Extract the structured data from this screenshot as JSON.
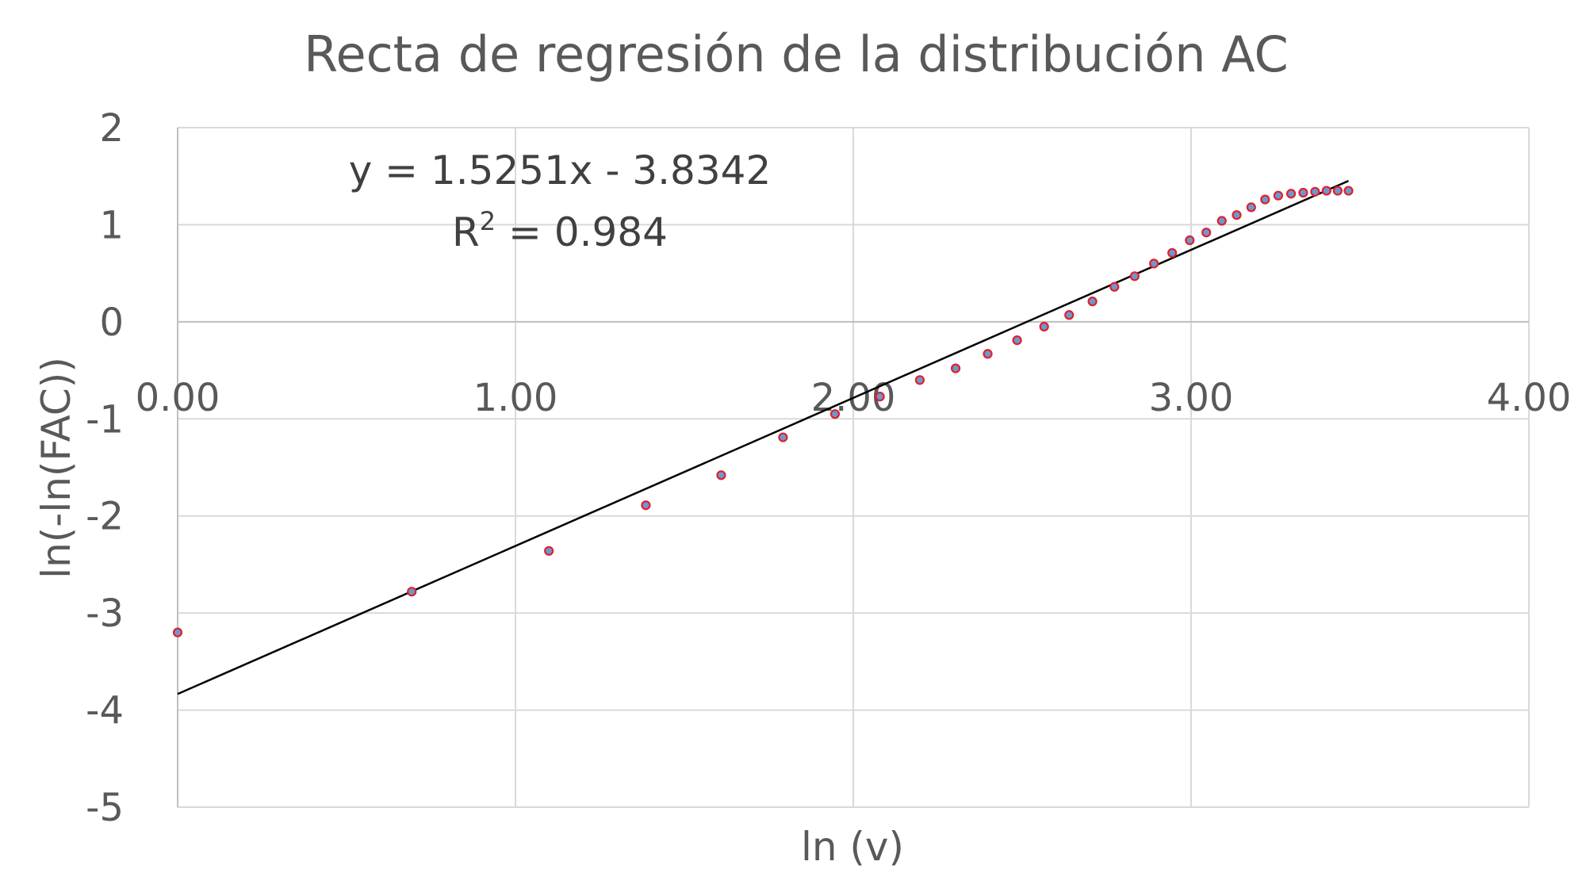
{
  "chart_data": {
    "type": "scatter",
    "title": "Recta de regresión de la distribución AC",
    "xlabel": "ln (v)",
    "ylabel": "ln(-ln(FAC))",
    "xlim": [
      0,
      4
    ],
    "ylim": [
      -5,
      2
    ],
    "x_ticks": [
      "0.00",
      "1.00",
      "2.00",
      "3.00",
      "4.00"
    ],
    "x_tick_values": [
      0,
      1,
      2,
      3,
      4
    ],
    "y_ticks": [
      "2",
      "1",
      "0",
      "-1",
      "-2",
      "-3",
      "-4",
      "-5"
    ],
    "y_tick_values": [
      2,
      1,
      0,
      -1,
      -2,
      -3,
      -4,
      -5
    ],
    "grid": true,
    "legend": null,
    "series": [
      {
        "name": "ln(-ln(FAC))",
        "marker_fill": "#6e97d0",
        "marker_stroke": "#e0202b",
        "x": [
          0.0,
          0.693,
          1.099,
          1.386,
          1.609,
          1.792,
          1.946,
          2.079,
          2.197,
          2.303,
          2.398,
          2.485,
          2.565,
          2.639,
          2.708,
          2.773,
          2.833,
          2.89,
          2.944,
          2.996,
          3.045,
          3.091,
          3.135,
          3.178,
          3.219,
          3.258,
          3.296,
          3.332,
          3.367,
          3.401,
          3.434,
          3.466
        ],
        "y": [
          -3.2,
          -2.78,
          -2.36,
          -1.89,
          -1.58,
          -1.19,
          -0.95,
          -0.77,
          -0.6,
          -0.48,
          -0.33,
          -0.19,
          -0.05,
          0.07,
          0.21,
          0.36,
          0.47,
          0.6,
          0.71,
          0.84,
          0.92,
          1.04,
          1.1,
          1.18,
          1.26,
          1.3,
          1.32,
          1.33,
          1.34,
          1.35,
          1.35,
          1.35
        ]
      }
    ],
    "trendline": {
      "type": "linear",
      "slope": 1.5251,
      "intercept": -3.8342,
      "x_range": [
        0,
        3.466
      ],
      "color": "#000000",
      "equation_label": "y = 1.5251x - 3.8342",
      "r2_label_prefix": "R",
      "r2_label_sup": "2",
      "r2_label_value": " = 0.984"
    }
  },
  "colors": {
    "text": "#595959",
    "grid": "#d9d9d9",
    "axis": "#bfbfbf",
    "trendline": "#000000"
  }
}
